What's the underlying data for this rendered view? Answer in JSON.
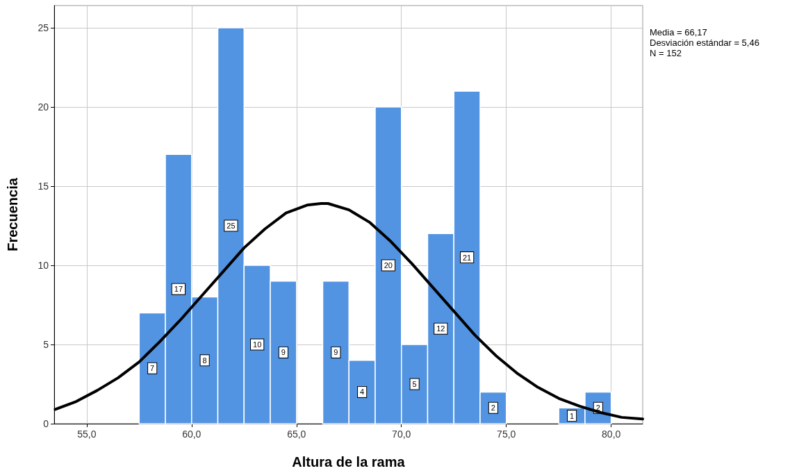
{
  "chart_data": {
    "type": "histogram",
    "xlabel": "Altura de la rama",
    "ylabel": "Frecuencia",
    "bins": [
      57.5,
      58.75,
      60,
      61.25,
      62.5,
      63.75,
      65,
      66.25,
      67.5,
      68.75,
      70,
      71.25,
      72.5,
      73.75,
      75,
      76.25,
      77.5,
      78.75,
      80
    ],
    "values": [
      7,
      17,
      8,
      25,
      10,
      9,
      0,
      9,
      4,
      20,
      5,
      12,
      21,
      2,
      0,
      0,
      1,
      2
    ],
    "value_labels": [
      "7",
      "17",
      "8",
      "25",
      "10",
      "9",
      null,
      "9",
      "4",
      "20",
      "5",
      "12",
      "21",
      "2",
      null,
      null,
      "1",
      "2"
    ],
    "color": "#5294e2",
    "series": [
      {
        "type": "line",
        "color": "#000000",
        "x": [
          53.5,
          54.5,
          55.5,
          56.5,
          57.5,
          58.5,
          59.5,
          60.5,
          61.5,
          62.5,
          63.5,
          64.5,
          65.5,
          66.17,
          66.5,
          67.5,
          68.5,
          69.5,
          70.5,
          71.5,
          72.5,
          73.5,
          74.5,
          75.5,
          76.5,
          77.5,
          78.5,
          79.5,
          80.5,
          81.5
        ],
        "values": [
          0.9,
          1.4,
          2.1,
          2.9,
          3.9,
          5.2,
          6.6,
          8.1,
          9.6,
          11.1,
          12.3,
          13.3,
          13.8,
          13.9,
          13.9,
          13.5,
          12.7,
          11.5,
          10.1,
          8.6,
          7.1,
          5.6,
          4.3,
          3.2,
          2.3,
          1.6,
          1.1,
          0.7,
          0.4,
          0.3
        ]
      }
    ],
    "xlim": [
      53.45,
      81.5
    ],
    "xticks": [
      {
        "value": 55,
        "label": "55,0"
      },
      {
        "value": 60,
        "label": "60,0"
      },
      {
        "value": 65,
        "label": "65,0"
      },
      {
        "value": 70,
        "label": "70,0"
      },
      {
        "value": 75,
        "label": "75,0"
      },
      {
        "value": 80,
        "label": "80,0"
      }
    ],
    "ylim": [
      0,
      26.4
    ],
    "yticks": [
      0,
      5,
      10,
      15,
      20,
      25
    ],
    "grid": true,
    "annotations": [
      "Media = 66,17",
      "Desviación estándar = 5,46",
      "N = 152"
    ]
  }
}
